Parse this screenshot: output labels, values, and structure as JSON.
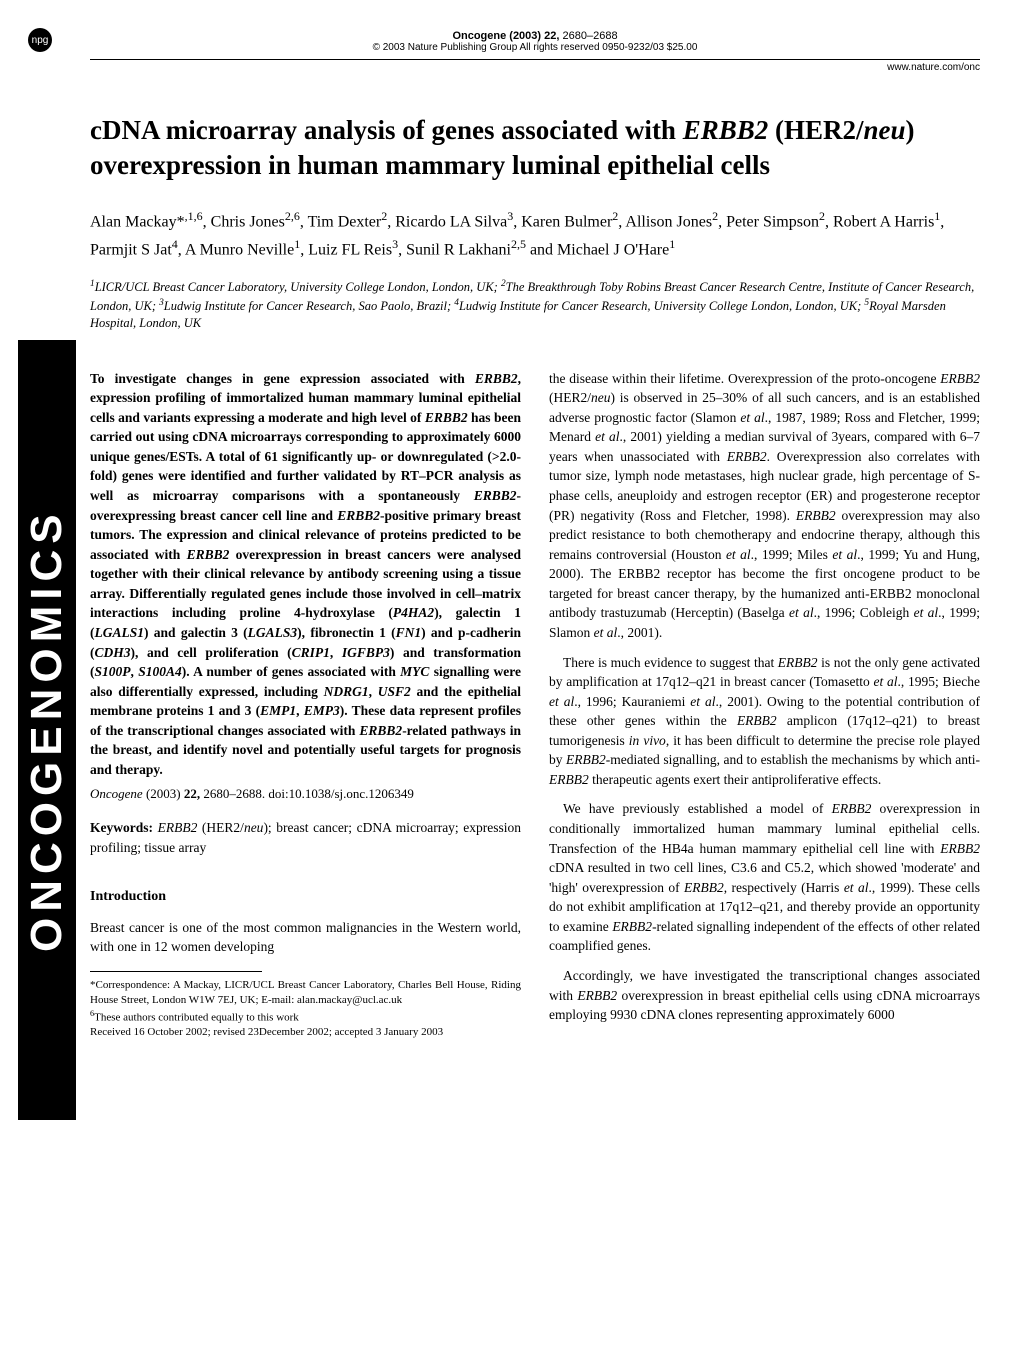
{
  "badge": "npg",
  "sidebar_text": "ONCOGENOMICS",
  "header": {
    "journal": "Oncogene (2003) 22,",
    "pages": "2680–2688",
    "copyright": "© 2003 Nature Publishing Group  All rights reserved 0950-9232/03 $25.00",
    "url": "www.nature.com/onc"
  },
  "title": "cDNA microarray analysis of genes associated with ERBB2 (HER2/neu) overexpression in human mammary luminal epithelial cells",
  "authors_html": "Alan Mackay*,1,6, Chris Jones2,6, Tim Dexter2, Ricardo LA Silva3, Karen Bulmer2, Allison Jones2, Peter Simpson2, Robert A Harris1, Parmjit S Jat4, A Munro Neville1, Luiz FL Reis3, Sunil R Lakhani2,5 and Michael J O'Hare1",
  "affiliations": "1LICR/UCL Breast Cancer Laboratory, University College London, London, UK; 2The Breakthrough Toby Robins Breast Cancer Research Centre, Institute of Cancer Research, London, UK; 3Ludwig Institute for Cancer Research, Sao Paolo, Brazil; 4Ludwig Institute for Cancer Research, University College London, London, UK; 5Royal Marsden Hospital, London, UK",
  "abstract": "To investigate changes in gene expression associated with ERBB2, expression profiling of immortalized human mammary luminal epithelial cells and variants expressing a moderate and high level of ERBB2 has been carried out using cDNA microarrays corresponding to approximately 6000 unique genes/ESTs. A total of 61 significantly up- or downregulated (>2.0-fold) genes were identified and further validated by RT–PCR analysis as well as microarray comparisons with a spontaneously ERBB2-overexpressing breast cancer cell line and ERBB2-positive primary breast tumors. The expression and clinical relevance of proteins predicted to be associated with ERBB2 overexpression in breast cancers were analysed together with their clinical relevance by antibody screening using a tissue array. Differentially regulated genes include those involved in cell–matrix interactions including proline 4-hydroxylase (P4HA2), galectin 1 (LGALS1) and galectin 3 (LGALS3), fibronectin 1 (FN1) and p-cadherin (CDH3), and cell proliferation (CRIP1, IGFBP3) and transformation (S100P, S100A4). A number of genes associated with MYC signalling were also differentially expressed, including NDRG1, USF2 and the epithelial membrane proteins 1 and 3 (EMP1, EMP3). These data represent profiles of the transcriptional changes associated with ERBB2-related pathways in the breast, and identify novel and potentially useful targets for prognosis and therapy.",
  "citation": "Oncogene (2003) 22, 2680–2688. doi:10.1038/sj.onc.1206349",
  "keywords_label": "Keywords:",
  "keywords": "ERBB2 (HER2/neu); breast cancer; cDNA microarray; expression profiling; tissue array",
  "intro_heading": "Introduction",
  "intro_para": "Breast cancer is one of the most common malignancies in the Western world, with one in 12 women developing",
  "footnotes": {
    "correspondence": "*Correspondence: A Mackay, LICR/UCL Breast Cancer Laboratory, Charles Bell House, Riding House Street, London W1W 7EJ, UK; E-mail: alan.mackay@ucl.ac.uk",
    "equal": "6These authors contributed equally to this work",
    "received": "Received 16 October 2002; revised 23December 2002; accepted 3 January 2003"
  },
  "right_col": {
    "p1": "the disease within their lifetime. Overexpression of the proto-oncogene ERBB2 (HER2/neu) is observed in 25–30% of all such cancers, and is an established adverse prognostic factor (Slamon et al., 1987, 1989; Ross and Fletcher, 1999; Menard et al., 2001) yielding a median survival of 3years, compared with 6–7 years when unassociated with ERBB2. Overexpression also correlates with tumor size, lymph node metastases, high nuclear grade, high percentage of S-phase cells, aneuploidy and estrogen receptor (ER) and progesterone receptor (PR) negativity (Ross and Fletcher, 1998). ERBB2 overexpression may also predict resistance to both chemotherapy and endocrine therapy, although this remains controversial (Houston et al., 1999; Miles et al., 1999; Yu and Hung, 2000). The ERBB2 receptor has become the first oncogene product to be targeted for breast cancer therapy, by the humanized anti-ERBB2 monoclonal antibody trastuzumab (Herceptin) (Baselga et al., 1996; Cobleigh et al., 1999; Slamon et al., 2001).",
    "p2": "There is much evidence to suggest that ERBB2 is not the only gene activated by amplification at 17q12–q21 in breast cancer (Tomasetto et al., 1995; Bieche et al., 1996; Kauraniemi et al., 2001). Owing to the potential contribution of these other genes within the ERBB2 amplicon (17q12–q21) to breast tumorigenesis in vivo, it has been difficult to determine the precise role played by ERBB2-mediated signalling, and to establish the mechanisms by which anti-ERBB2 therapeutic agents exert their antiproliferative effects.",
    "p3": "We have previously established a model of ERBB2 overexpression in conditionally immortalized human mammary luminal epithelial cells. Transfection of the HB4a human mammary epithelial cell line with ERBB2 cDNA resulted in two cell lines, C3.6 and C5.2, which showed 'moderate' and 'high' overexpression of ERBB2, respectively (Harris et al., 1999). These cells do not exhibit amplification at 17q12–q21, and thereby provide an opportunity to examine ERBB2-related signalling independent of the effects of other related coamplified genes.",
    "p4": "Accordingly, we have investigated the transcriptional changes associated with ERBB2 overexpression in breast epithelial cells using cDNA microarrays employing 9930 cDNA clones representing approximately 6000"
  }
}
